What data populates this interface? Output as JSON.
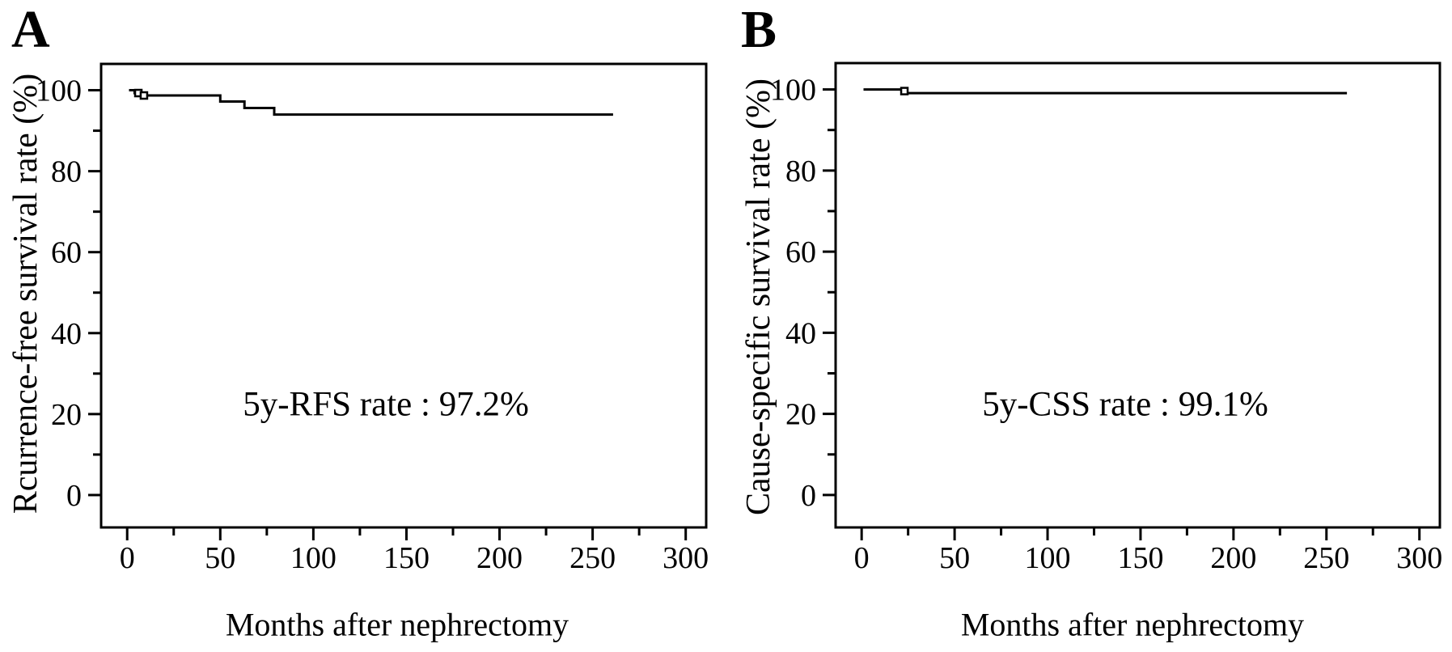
{
  "chart_data": [
    {
      "type": "line",
      "panel_label": "A",
      "title": "",
      "xlabel": "Months after nephrectomy",
      "ylabel": "Rcurrence-free survival rate (%)",
      "annotation": "5y-RFS rate : 97.2%",
      "five_year_rate_pct": 97.2,
      "xlim": [
        -14,
        311
      ],
      "ylim": [
        -8,
        106.5
      ],
      "xticks_major": [
        0,
        50,
        100,
        150,
        200,
        250,
        300
      ],
      "xticks_minor": [
        25,
        75,
        125,
        175,
        225,
        275
      ],
      "yticks_major": [
        0,
        20,
        40,
        60,
        80,
        100
      ],
      "yticks_minor": [
        10,
        30,
        50,
        70,
        90
      ],
      "grid": false,
      "legend": "none",
      "line_color": "#000000",
      "series": [
        {
          "name": "Recurrence-free survival",
          "step_points": [
            [
              1,
              100
            ],
            [
              4,
              100
            ],
            [
              4,
              99.3
            ],
            [
              7,
              99.3
            ],
            [
              7,
              98.7
            ],
            [
              50,
              98.7
            ],
            [
              50,
              97.2
            ],
            [
              63,
              97.2
            ],
            [
              63,
              95.6
            ],
            [
              79,
              95.6
            ],
            [
              79,
              94
            ],
            [
              261,
              94
            ]
          ],
          "censor_marks": [
            [
              6,
              99.3
            ],
            [
              9,
              98.7
            ]
          ]
        }
      ]
    },
    {
      "type": "line",
      "panel_label": "B",
      "title": "",
      "xlabel": "Months after nephrectomy",
      "ylabel": "Cause-specific survival rate (%)",
      "annotation": "5y-CSS rate : 99.1%",
      "five_year_rate_pct": 99.1,
      "xlim": [
        -14,
        311
      ],
      "ylim": [
        -8,
        106.5
      ],
      "xticks_major": [
        0,
        50,
        100,
        150,
        200,
        250,
        300
      ],
      "xticks_minor": [
        25,
        75,
        125,
        175,
        225,
        275
      ],
      "yticks_major": [
        0,
        20,
        40,
        60,
        80,
        100
      ],
      "yticks_minor": [
        10,
        30,
        50,
        70,
        90
      ],
      "grid": false,
      "legend": "none",
      "line_color": "#000000",
      "series": [
        {
          "name": "Cause-specific survival",
          "step_points": [
            [
              1,
              100
            ],
            [
              23,
              100
            ],
            [
              23,
              99.1
            ],
            [
              261,
              99.1
            ]
          ],
          "censor_marks": [
            [
              23,
              99.6
            ]
          ]
        }
      ]
    }
  ]
}
